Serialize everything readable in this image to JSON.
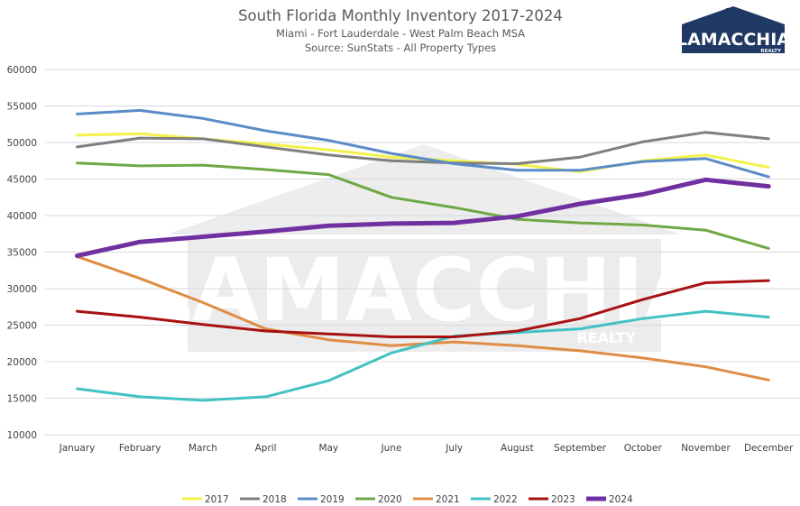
{
  "header": {
    "title": "South Florida Monthly Inventory 2017-2024",
    "subtitle": "Miami - Fort Lauderdale - West Palm Beach MSA",
    "source": "Source: SunStats - All Property Types"
  },
  "logo": {
    "name": "LAMACCHIA",
    "tagline": "REALTY",
    "primary_color": "#1f3864"
  },
  "watermark": {
    "name": "LAMACCHIA",
    "tagline": "REALTY"
  },
  "chart_data": {
    "type": "line",
    "title": "South Florida Monthly Inventory 2017-2024",
    "categories": [
      "January",
      "February",
      "March",
      "April",
      "May",
      "June",
      "July",
      "August",
      "September",
      "October",
      "November",
      "December"
    ],
    "ylim": [
      10000,
      60000
    ],
    "yticks": [
      10000,
      15000,
      20000,
      25000,
      30000,
      35000,
      40000,
      45000,
      50000,
      55000,
      60000
    ],
    "grid": true,
    "legend_position": "bottom",
    "series": [
      {
        "name": "2017",
        "color": "#f2f24a",
        "width": 3,
        "values": [
          51000,
          51200,
          50500,
          49800,
          49000,
          48000,
          47500,
          47000,
          46000,
          47500,
          48300,
          46600
        ]
      },
      {
        "name": "2018",
        "color": "#7f7f7f",
        "width": 3,
        "values": [
          49400,
          50600,
          50500,
          49400,
          48300,
          47500,
          47200,
          47100,
          48000,
          50100,
          51400,
          50500
        ]
      },
      {
        "name": "2019",
        "color": "#5b8cc8",
        "width": 3,
        "values": [
          53900,
          54400,
          53300,
          51600,
          50300,
          48500,
          47100,
          46200,
          46200,
          47400,
          47800,
          45300
        ]
      },
      {
        "name": "2020",
        "color": "#70a845",
        "width": 3,
        "values": [
          47200,
          46800,
          46900,
          46300,
          45600,
          42500,
          41100,
          39500,
          39000,
          38700,
          38000,
          35500
        ]
      },
      {
        "name": "2021",
        "color": "#e08c45",
        "width": 3,
        "values": [
          34400,
          31400,
          28100,
          24500,
          23000,
          22200,
          22700,
          22200,
          21500,
          20500,
          19300,
          17500
        ]
      },
      {
        "name": "2022",
        "color": "#42c2c2",
        "width": 3,
        "values": [
          16300,
          15200,
          14700,
          15200,
          17400,
          21200,
          23500,
          24000,
          24500,
          25900,
          26900,
          26100
        ]
      },
      {
        "name": "2023",
        "color": "#a81111",
        "width": 3,
        "values": [
          26900,
          26100,
          25100,
          24200,
          23800,
          23400,
          23400,
          24200,
          25900,
          28500,
          30800,
          31100
        ]
      },
      {
        "name": "2024",
        "color": "#7030a0",
        "width": 5,
        "values": [
          34500,
          36400,
          37100,
          37800,
          38600,
          38900,
          39000,
          39900,
          41600,
          42900,
          44900,
          44000
        ]
      }
    ]
  }
}
